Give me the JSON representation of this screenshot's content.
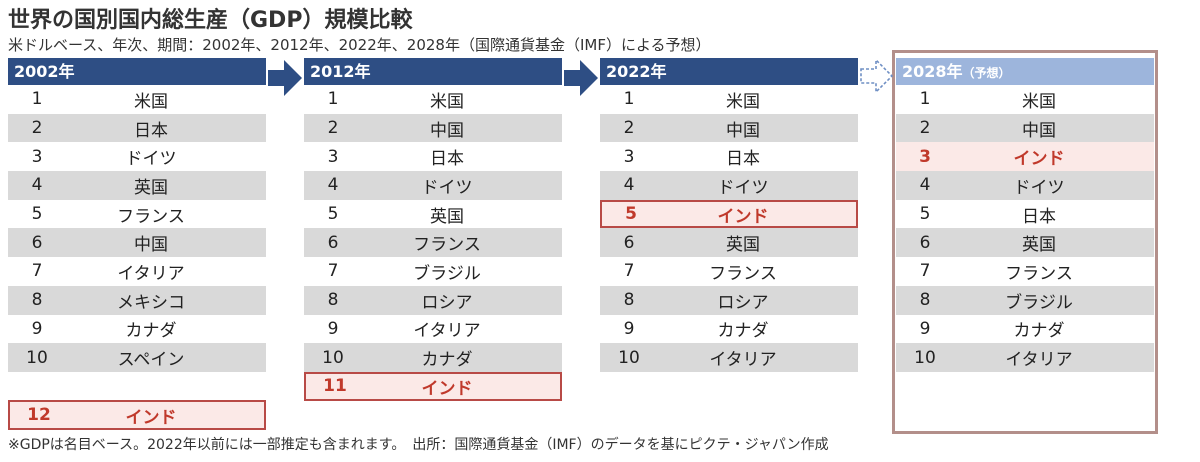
{
  "title": "世界の国別国内総生産（GDP）規模比較",
  "subtitle": "米ドルベース、年次、期間：2002年、2012年、2022年、2028年（国際通貨基金（IMF）による予想）",
  "note": "※GDPは名目ベース。2022年以前には一部推定も含まれます。　出所：国際通貨基金（IMF）のデータを基にピクテ・ジャパン作成",
  "colors": {
    "header": "#2e4e84",
    "header_forecast": "#9db5dc",
    "highlight_text": "#c0392b",
    "highlight_bg": "#fbe9e7",
    "stripe": "#d9d9d9"
  },
  "chart_data": {
    "type": "table",
    "columns": [
      {
        "header": "2002年",
        "suffix": "",
        "forecast": false,
        "rows": [
          {
            "rank": "1",
            "country": "米国"
          },
          {
            "rank": "2",
            "country": "日本"
          },
          {
            "rank": "3",
            "country": "ドイツ"
          },
          {
            "rank": "4",
            "country": "英国"
          },
          {
            "rank": "5",
            "country": "フランス"
          },
          {
            "rank": "6",
            "country": "中国"
          },
          {
            "rank": "7",
            "country": "イタリア"
          },
          {
            "rank": "8",
            "country": "メキシコ"
          },
          {
            "rank": "9",
            "country": "カナダ"
          },
          {
            "rank": "10",
            "country": "スペイン"
          }
        ],
        "extra": {
          "rank": "12",
          "country": "インド"
        }
      },
      {
        "header": "2012年",
        "suffix": "",
        "forecast": false,
        "rows": [
          {
            "rank": "1",
            "country": "米国"
          },
          {
            "rank": "2",
            "country": "中国"
          },
          {
            "rank": "3",
            "country": "日本"
          },
          {
            "rank": "4",
            "country": "ドイツ"
          },
          {
            "rank": "5",
            "country": "英国"
          },
          {
            "rank": "6",
            "country": "フランス"
          },
          {
            "rank": "7",
            "country": "ブラジル"
          },
          {
            "rank": "8",
            "country": "ロシア"
          },
          {
            "rank": "9",
            "country": "イタリア"
          },
          {
            "rank": "10",
            "country": "カナダ"
          },
          {
            "rank": "11",
            "country": "インド",
            "highlight": true
          }
        ]
      },
      {
        "header": "2022年",
        "suffix": "",
        "forecast": false,
        "rows": [
          {
            "rank": "1",
            "country": "米国"
          },
          {
            "rank": "2",
            "country": "中国"
          },
          {
            "rank": "3",
            "country": "日本"
          },
          {
            "rank": "4",
            "country": "ドイツ"
          },
          {
            "rank": "5",
            "country": "インド",
            "highlight": true
          },
          {
            "rank": "6",
            "country": "英国"
          },
          {
            "rank": "7",
            "country": "フランス"
          },
          {
            "rank": "8",
            "country": "ロシア"
          },
          {
            "rank": "9",
            "country": "カナダ"
          },
          {
            "rank": "10",
            "country": "イタリア"
          }
        ]
      },
      {
        "header": "2028年",
        "suffix": "（予想）",
        "forecast": true,
        "rows": [
          {
            "rank": "1",
            "country": "米国"
          },
          {
            "rank": "2",
            "country": "中国"
          },
          {
            "rank": "3",
            "country": "インド",
            "highlight": true
          },
          {
            "rank": "4",
            "country": "ドイツ"
          },
          {
            "rank": "5",
            "country": "日本"
          },
          {
            "rank": "6",
            "country": "英国"
          },
          {
            "rank": "7",
            "country": "フランス"
          },
          {
            "rank": "8",
            "country": "ブラジル"
          },
          {
            "rank": "9",
            "country": "カナダ"
          },
          {
            "rank": "10",
            "country": "イタリア"
          }
        ]
      }
    ]
  }
}
